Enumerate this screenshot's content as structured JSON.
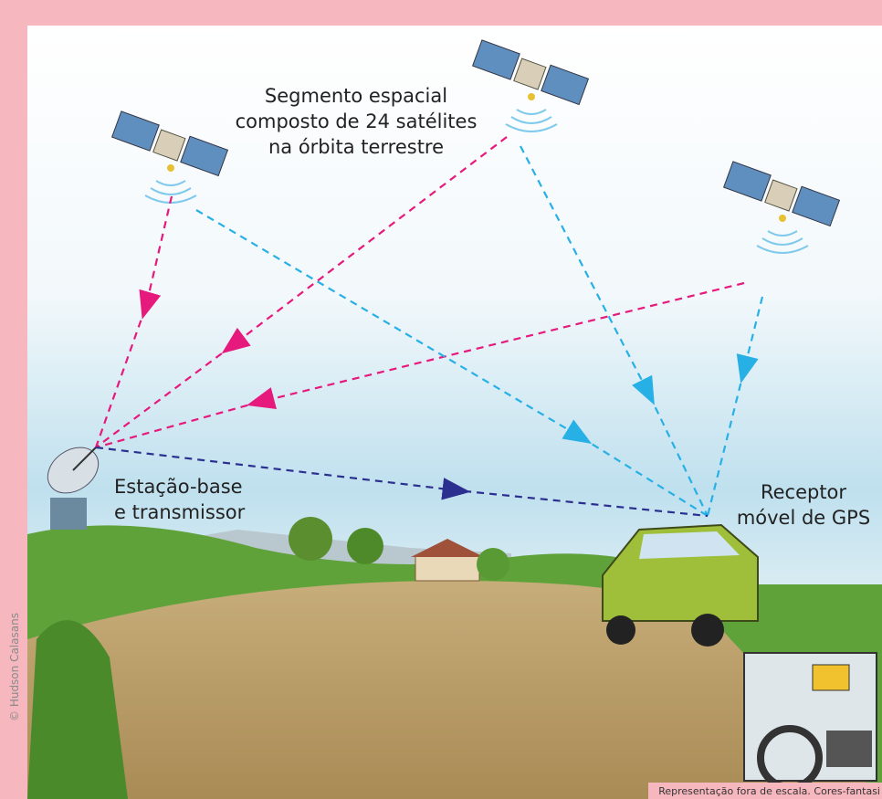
{
  "satellite_segment": {
    "lines": [
      "Segmento espacial",
      "composto de 24 satélites",
      "na órbita terrestre"
    ]
  },
  "base_station": {
    "lines": [
      "Estação-base",
      "e transmissor"
    ]
  },
  "receiver": {
    "lines": [
      "Receptor",
      "móvel de GPS"
    ]
  },
  "credit": "© Hudson Calasans",
  "footnote": "Representação fora de escala. Cores-fantasi"
}
